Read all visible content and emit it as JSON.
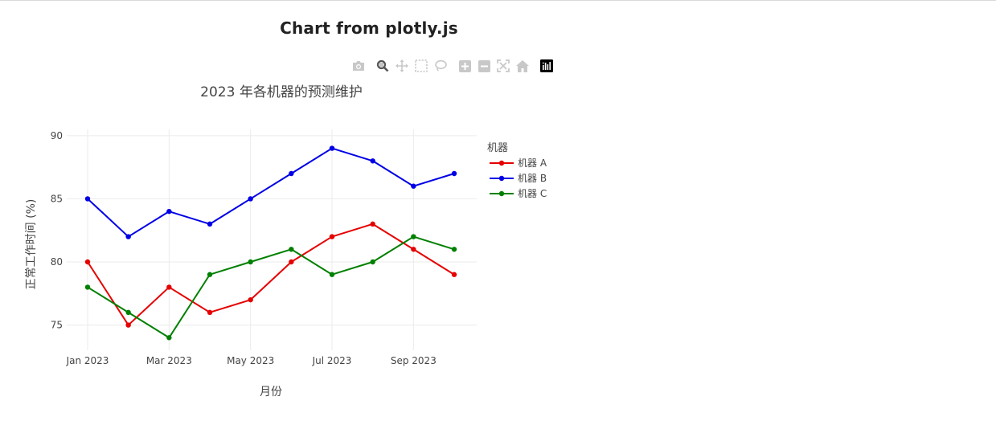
{
  "page": {
    "heading": "Chart from plotly.js"
  },
  "modebar": {
    "buttons": [
      {
        "name": "camera-icon",
        "tooltip": "Download plot as a png"
      },
      {
        "name": "zoom-icon",
        "tooltip": "Zoom"
      },
      {
        "name": "pan-icon",
        "tooltip": "Pan"
      },
      {
        "name": "box-select-icon",
        "tooltip": "Box Select"
      },
      {
        "name": "lasso-select-icon",
        "tooltip": "Lasso Select"
      },
      {
        "name": "zoom-in-icon",
        "tooltip": "Zoom in"
      },
      {
        "name": "zoom-out-icon",
        "tooltip": "Zoom out"
      },
      {
        "name": "autoscale-icon",
        "tooltip": "Autoscale"
      },
      {
        "name": "reset-axes-icon",
        "tooltip": "Reset axes"
      },
      {
        "name": "plotly-logo-icon",
        "tooltip": "Produced with Plotly.js"
      }
    ],
    "active": "zoom-icon"
  },
  "chart_data": {
    "type": "line",
    "title": "2023 年各机器的预测维护",
    "xlabel": "月份",
    "ylabel": "正常工作时间 (%)",
    "x": [
      "2023-01",
      "2023-02",
      "2023-03",
      "2023-04",
      "2023-05",
      "2023-06",
      "2023-07",
      "2023-08",
      "2023-09",
      "2023-10"
    ],
    "xticks": [
      {
        "label": "Jan 2023",
        "index": 0
      },
      {
        "label": "Mar 2023",
        "index": 2
      },
      {
        "label": "May 2023",
        "index": 4
      },
      {
        "label": "Jul 2023",
        "index": 6
      },
      {
        "label": "Sep 2023",
        "index": 8
      }
    ],
    "yticks": [
      75,
      80,
      85,
      90
    ],
    "ylim": [
      73,
      90.5
    ],
    "grid": true,
    "legend": {
      "title": "机器",
      "placement": "right"
    },
    "series": [
      {
        "name": "机器 A",
        "color": "#e60000",
        "values": [
          80,
          75,
          78,
          76,
          77,
          80,
          82,
          83,
          81,
          79
        ]
      },
      {
        "name": "机器 B",
        "color": "#0000e6",
        "values": [
          85,
          82,
          84,
          83,
          85,
          87,
          89,
          88,
          86,
          87
        ]
      },
      {
        "name": "机器 C",
        "color": "#008000",
        "values": [
          78,
          76,
          74,
          79,
          80,
          81,
          79,
          80,
          82,
          81
        ]
      }
    ]
  }
}
